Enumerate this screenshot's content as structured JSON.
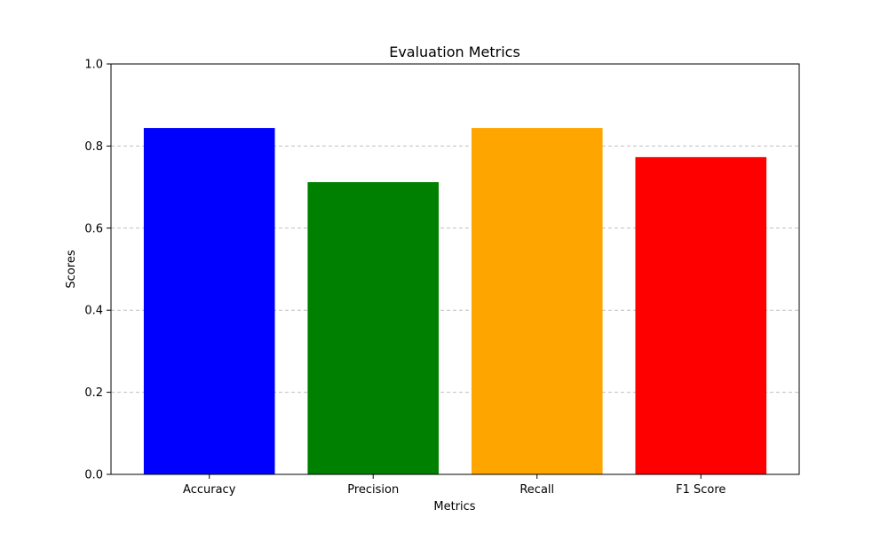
{
  "chart_data": {
    "type": "bar",
    "title": "Evaluation Metrics",
    "xlabel": "Metrics",
    "ylabel": "Scores",
    "categories": [
      "Accuracy",
      "Precision",
      "Recall",
      "F1 Score"
    ],
    "values": [
      0.844,
      0.712,
      0.844,
      0.773
    ],
    "colors": [
      "#0000ff",
      "#008000",
      "#ffa500",
      "#ff0000"
    ],
    "ylim": [
      0,
      1.0
    ],
    "yticks": [
      0.0,
      0.2,
      0.4,
      0.6,
      0.8,
      1.0
    ],
    "ytick_labels": [
      "0.0",
      "0.2",
      "0.4",
      "0.6",
      "0.8",
      "1.0"
    ],
    "grid": "y-dashed",
    "legend": "none"
  }
}
